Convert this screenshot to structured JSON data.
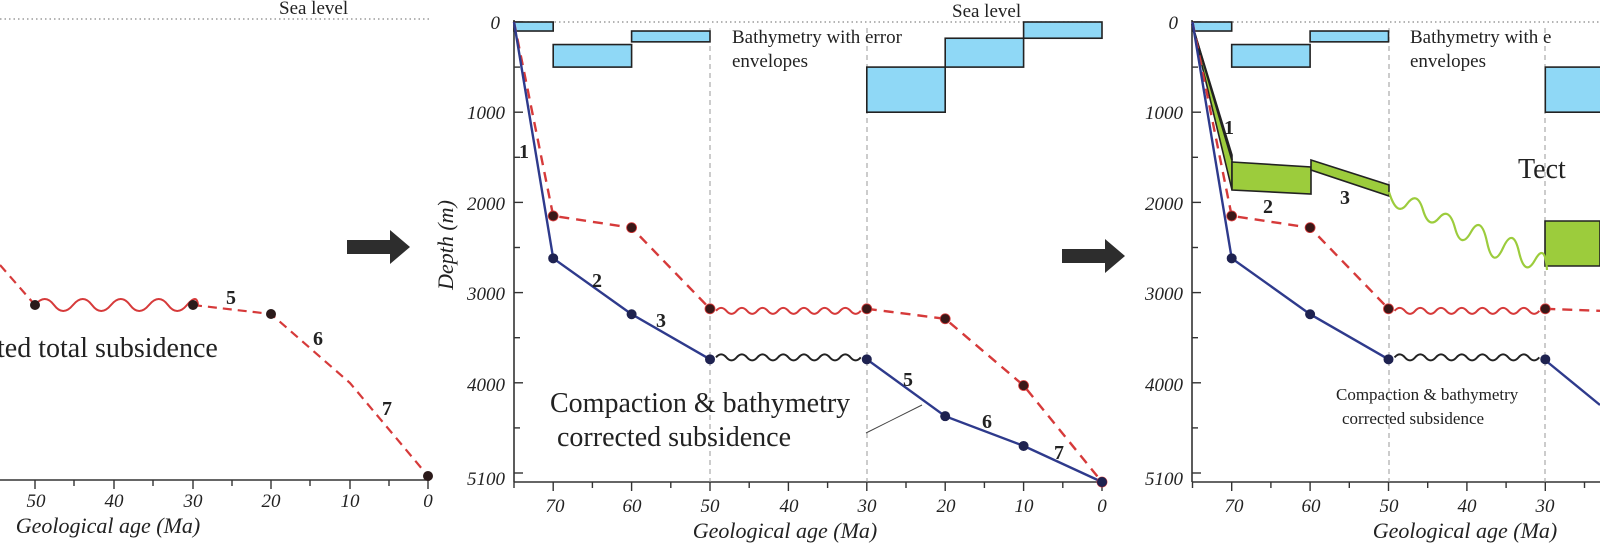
{
  "axis": {
    "x_title": "Geological age (Ma)",
    "y_title": "Depth (m)"
  },
  "labels": {
    "sea_level": "Sea level",
    "bathymetry": [
      "Bathymetry with error",
      "envelopes"
    ],
    "bathymetry_cut": [
      "Bathymetry with e",
      "envelopes"
    ],
    "corrected_big": [
      "Compaction & bathymetry",
      "corrected subsidence"
    ],
    "corrected_small": [
      "Compaction & bathymetry",
      "corrected subsidence"
    ],
    "total_partial": "ted total subsidence",
    "tectonic_partial": "Tect"
  },
  "panel1_xticks": [
    "50",
    "40",
    "30",
    "20",
    "10",
    "0"
  ],
  "panel2_xticks": [
    "70",
    "60",
    "50",
    "40",
    "30",
    "20",
    "10",
    "0"
  ],
  "panel2_yticks": [
    "0",
    "1000",
    "2000",
    "3000",
    "4000",
    "5100"
  ],
  "panel3_xticks": [
    "70",
    "60",
    "50",
    "40",
    "30"
  ],
  "panel3_yticks": [
    "0",
    "1000",
    "2000",
    "3000",
    "4000",
    "5100"
  ],
  "segment_labels": [
    "1",
    "2",
    "3",
    "5",
    "6",
    "7"
  ],
  "colors": {
    "total_subsidence": "#d63a3a",
    "corrected_subsidence": "#2e3a8c",
    "bathymetry_fill": "#8fd8f6",
    "tectonic_fill": "#9ccc3c",
    "arrow": "#2d2d2d"
  },
  "chart_data": {
    "type": "line",
    "xlabel": "Geological age (Ma)",
    "ylabel": "Depth (m)",
    "xlim": [
      75,
      0
    ],
    "ylim": [
      0,
      5100
    ],
    "series": [
      {
        "name": "",
        "style": "dashed-red",
        "x": [
          75,
          70,
          60,
          50,
          30,
          20,
          10,
          0
        ],
        "y": [
          0,
          2150,
          2280,
          3180,
          3180,
          3290,
          4030,
          5100
        ]
      },
      {
        "name": "",
        "style": "solid-navy",
        "x": [
          75,
          70,
          60,
          50,
          30,
          20,
          10,
          0
        ],
        "y": [
          0,
          2620,
          3240,
          3740,
          3740,
          4370,
          4700,
          5100
        ]
      }
    ],
    "bathymetry_envelopes": [
      {
        "x": [
          75,
          70
        ],
        "y": [
          0,
          100
        ]
      },
      {
        "x": [
          70,
          60
        ],
        "y": [
          250,
          500
        ]
      },
      {
        "x": [
          60,
          50
        ],
        "y": [
          100,
          220
        ]
      },
      {
        "x": [
          30,
          20
        ],
        "y": [
          500,
          1000
        ]
      },
      {
        "x": [
          20,
          10
        ],
        "y": [
          180,
          500
        ]
      },
      {
        "x": [
          10,
          0
        ],
        "y": [
          0,
          180
        ]
      }
    ]
  }
}
